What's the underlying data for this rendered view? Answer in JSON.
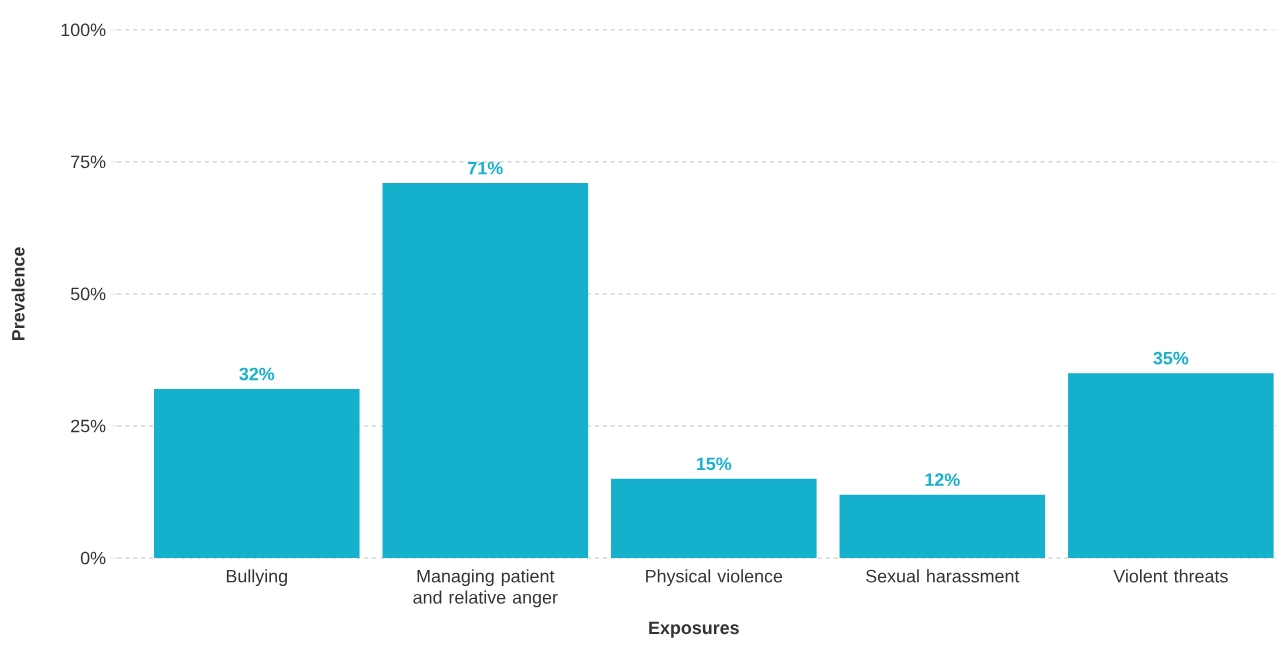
{
  "chart_data": {
    "type": "bar",
    "xlabel": "Exposures",
    "ylabel": "Prevalence",
    "categories": [
      "Bullying",
      "Managing patient and relative anger",
      "Physical violence",
      "Sexual harassment",
      "Violent threats"
    ],
    "values": [
      32,
      71,
      15,
      12,
      35
    ],
    "value_labels": [
      "32%",
      "71%",
      "15%",
      "12%",
      "35%"
    ],
    "color": "#14b0cc",
    "ylim": [
      0,
      100
    ],
    "yticks": [
      {
        "value": 0,
        "label": "0%"
      },
      {
        "value": 25,
        "label": "25%"
      },
      {
        "value": 50,
        "label": "50%"
      },
      {
        "value": 75,
        "label": "75%"
      },
      {
        "value": 100,
        "label": "100%"
      }
    ],
    "grid": "y"
  }
}
